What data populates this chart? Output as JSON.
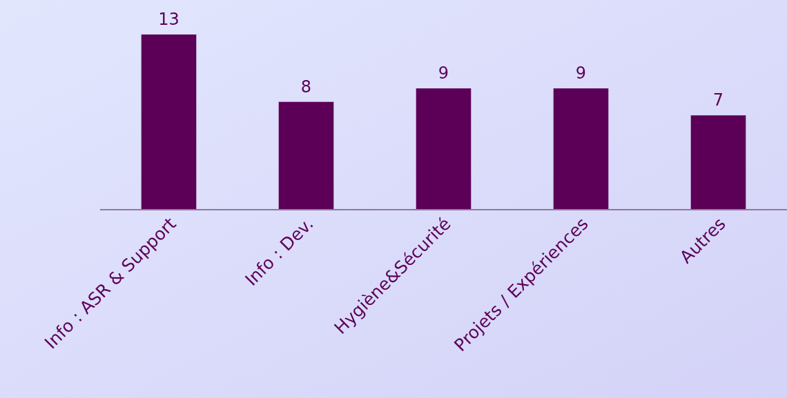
{
  "chart_data": {
    "type": "bar",
    "categories": [
      "Info : ASR & Support",
      "Info : Dev.",
      "Hygiène&Sécurité",
      "Projets / Expériences",
      "Autres"
    ],
    "values": [
      13,
      8,
      9,
      9,
      7
    ],
    "color": "#5c0057",
    "data_labels": true
  }
}
